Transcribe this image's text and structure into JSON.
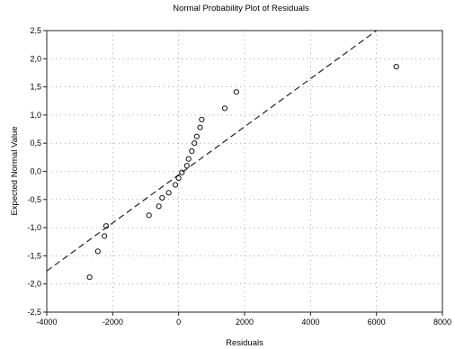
{
  "chart_data": {
    "type": "scatter",
    "title": "Normal Probability Plot of Residuals",
    "xlabel": "Residuals",
    "ylabel": "Expected Normal Value",
    "xlim": [
      -4000,
      8000
    ],
    "ylim": [
      -2.5,
      2.5
    ],
    "x_ticks": [
      -4000,
      -2000,
      0,
      2000,
      4000,
      6000,
      8000
    ],
    "y_ticks": [
      "2,5",
      "2,0",
      "1,5",
      "1,0",
      "0,5",
      "0,0",
      "-0,5",
      "-1,0",
      "-1,5",
      "-2,0",
      "-2,5"
    ],
    "y_tick_values": [
      2.5,
      2.0,
      1.5,
      1.0,
      0.5,
      0.0,
      -0.5,
      -1.0,
      -1.5,
      -2.0,
      -2.5
    ],
    "grid": true,
    "legend": "none",
    "colors": {
      "points": "#111111",
      "line": "#222222",
      "grid": "#777777"
    },
    "points": [
      {
        "x": -2700,
        "y": -1.88
      },
      {
        "x": -2450,
        "y": -1.42
      },
      {
        "x": -2250,
        "y": -1.15
      },
      {
        "x": -2200,
        "y": -0.97
      },
      {
        "x": -900,
        "y": -0.78
      },
      {
        "x": -600,
        "y": -0.62
      },
      {
        "x": -500,
        "y": -0.47
      },
      {
        "x": -300,
        "y": -0.38
      },
      {
        "x": -100,
        "y": -0.24
      },
      {
        "x": 0,
        "y": -0.12
      },
      {
        "x": 100,
        "y": -0.02
      },
      {
        "x": 250,
        "y": 0.1
      },
      {
        "x": 300,
        "y": 0.22
      },
      {
        "x": 400,
        "y": 0.36
      },
      {
        "x": 480,
        "y": 0.5
      },
      {
        "x": 550,
        "y": 0.62
      },
      {
        "x": 650,
        "y": 0.78
      },
      {
        "x": 700,
        "y": 0.92
      },
      {
        "x": 1400,
        "y": 1.12
      },
      {
        "x": 1750,
        "y": 1.41
      },
      {
        "x": 6600,
        "y": 1.86
      }
    ],
    "fit_line": {
      "x": [
        -4000,
        6000
      ],
      "y": [
        -1.77,
        2.5
      ]
    }
  }
}
